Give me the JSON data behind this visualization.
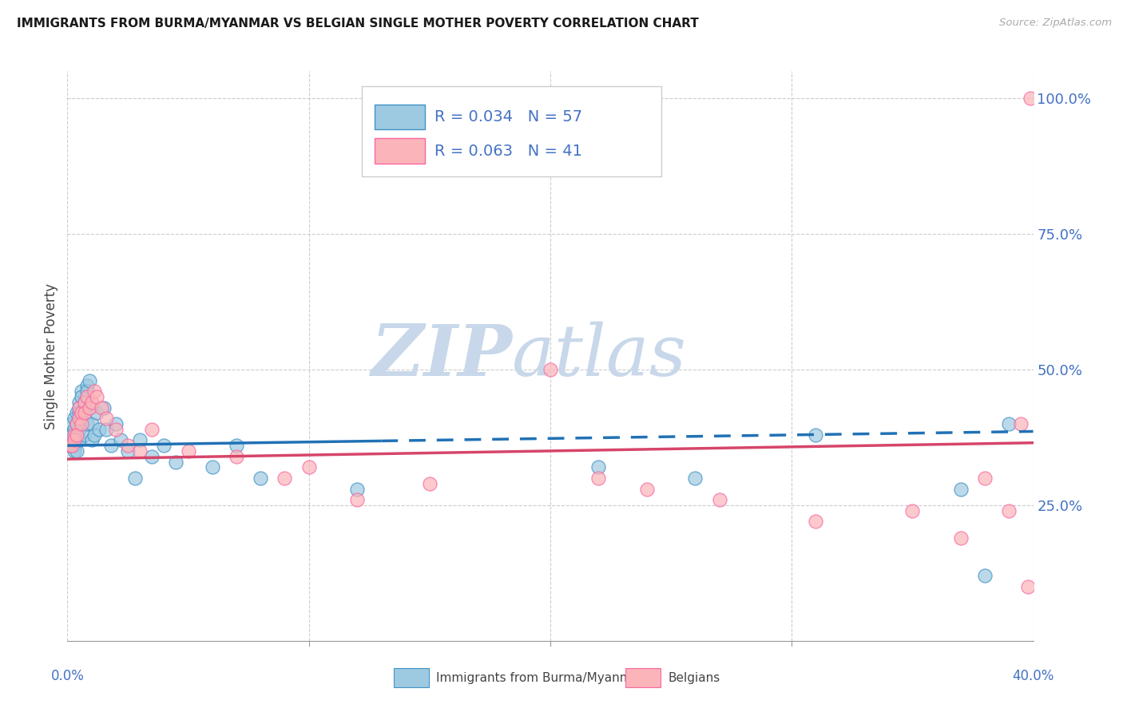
{
  "title": "IMMIGRANTS FROM BURMA/MYANMAR VS BELGIAN SINGLE MOTHER POVERTY CORRELATION CHART",
  "source": "Source: ZipAtlas.com",
  "ylabel": "Single Mother Poverty",
  "xlim": [
    0.0,
    0.4
  ],
  "ylim": [
    0.0,
    1.05
  ],
  "ytick_vals": [
    0.0,
    0.25,
    0.5,
    0.75,
    1.0
  ],
  "ytick_labels": [
    "",
    "25.0%",
    "50.0%",
    "75.0%",
    "100.0%"
  ],
  "xtick_vals": [
    0.0,
    0.1,
    0.2,
    0.3,
    0.4
  ],
  "xtick_labels": [
    "0.0%",
    "",
    "",
    "",
    "40.0%"
  ],
  "blue_color": "#9ecae1",
  "blue_edge": "#4292c6",
  "pink_color": "#fbb4b9",
  "pink_edge": "#f768a1",
  "trend_blue_color": "#2171b5",
  "trend_pink_color": "#d6456a",
  "axis_label_color": "#4472c4",
  "grid_color": "#cccccc",
  "title_color": "#1a1a1a",
  "source_color": "#aaaaaa",
  "watermark_color": "#c8d8ea",
  "blue_R": 0.034,
  "blue_N": 57,
  "pink_R": 0.063,
  "pink_N": 41,
  "blue_intercept": 0.36,
  "blue_slope": 0.065,
  "pink_intercept": 0.335,
  "pink_slope": 0.075,
  "trend_dash_start": 0.13,
  "blue_x": [
    0.001,
    0.001,
    0.002,
    0.002,
    0.002,
    0.003,
    0.003,
    0.003,
    0.003,
    0.003,
    0.004,
    0.004,
    0.004,
    0.004,
    0.004,
    0.005,
    0.005,
    0.005,
    0.005,
    0.005,
    0.006,
    0.006,
    0.006,
    0.007,
    0.007,
    0.007,
    0.008,
    0.008,
    0.008,
    0.009,
    0.009,
    0.01,
    0.01,
    0.011,
    0.012,
    0.013,
    0.015,
    0.016,
    0.018,
    0.02,
    0.022,
    0.025,
    0.028,
    0.03,
    0.035,
    0.04,
    0.045,
    0.06,
    0.07,
    0.08,
    0.12,
    0.22,
    0.26,
    0.31,
    0.37,
    0.38,
    0.39
  ],
  "blue_y": [
    0.36,
    0.38,
    0.37,
    0.38,
    0.4,
    0.41,
    0.39,
    0.37,
    0.36,
    0.35,
    0.42,
    0.4,
    0.38,
    0.37,
    0.35,
    0.44,
    0.43,
    0.42,
    0.39,
    0.37,
    0.46,
    0.45,
    0.42,
    0.44,
    0.42,
    0.38,
    0.47,
    0.46,
    0.4,
    0.48,
    0.43,
    0.4,
    0.37,
    0.38,
    0.42,
    0.39,
    0.43,
    0.39,
    0.36,
    0.4,
    0.37,
    0.35,
    0.3,
    0.37,
    0.34,
    0.36,
    0.33,
    0.32,
    0.36,
    0.3,
    0.28,
    0.32,
    0.3,
    0.38,
    0.28,
    0.12,
    0.4
  ],
  "pink_x": [
    0.001,
    0.002,
    0.003,
    0.003,
    0.004,
    0.004,
    0.005,
    0.005,
    0.006,
    0.006,
    0.007,
    0.007,
    0.008,
    0.009,
    0.01,
    0.011,
    0.012,
    0.014,
    0.016,
    0.02,
    0.025,
    0.03,
    0.035,
    0.05,
    0.07,
    0.09,
    0.1,
    0.12,
    0.15,
    0.2,
    0.22,
    0.24,
    0.27,
    0.31,
    0.35,
    0.37,
    0.38,
    0.39,
    0.395,
    0.398,
    0.399
  ],
  "pink_y": [
    0.36,
    0.36,
    0.38,
    0.37,
    0.4,
    0.38,
    0.43,
    0.41,
    0.42,
    0.4,
    0.44,
    0.42,
    0.45,
    0.43,
    0.44,
    0.46,
    0.45,
    0.43,
    0.41,
    0.39,
    0.36,
    0.35,
    0.39,
    0.35,
    0.34,
    0.3,
    0.32,
    0.26,
    0.29,
    0.5,
    0.3,
    0.28,
    0.26,
    0.22,
    0.24,
    0.19,
    0.3,
    0.24,
    0.4,
    0.1,
    1.0
  ]
}
